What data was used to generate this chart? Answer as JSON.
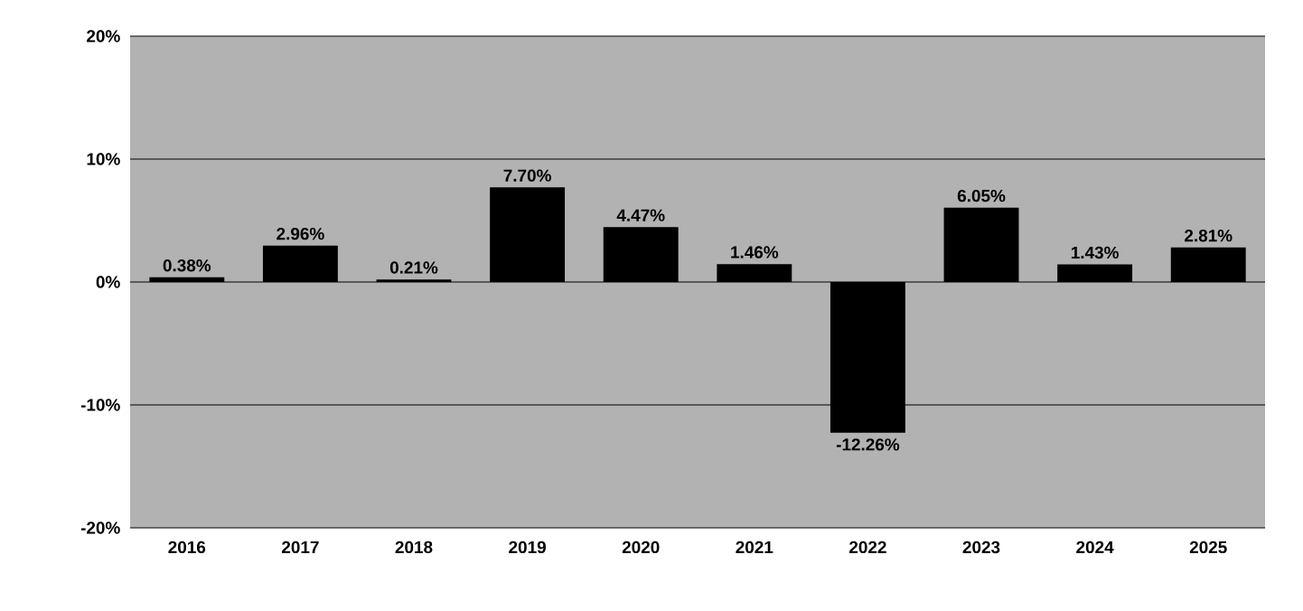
{
  "chart_data": {
    "type": "bar",
    "categories": [
      "2016",
      "2017",
      "2018",
      "2019",
      "2020",
      "2021",
      "2022",
      "2023",
      "2024",
      "2025"
    ],
    "values": [
      0.38,
      2.96,
      0.21,
      7.7,
      4.47,
      1.46,
      -12.26,
      6.05,
      1.43,
      2.81
    ],
    "value_labels": [
      "0.38%",
      "2.96%",
      "0.21%",
      "7.70%",
      "4.47%",
      "1.46%",
      "-12.26%",
      "6.05%",
      "1.43%",
      "2.81%"
    ],
    "color": "#000000",
    "ylim": [
      -20,
      20
    ],
    "yticks": [
      {
        "value": -20,
        "label": "-20%"
      },
      {
        "value": -10,
        "label": "-10%"
      },
      {
        "value": 0,
        "label": "0%"
      },
      {
        "value": 10,
        "label": "10%"
      },
      {
        "value": 20,
        "label": "20%"
      }
    ],
    "grid": "y"
  }
}
